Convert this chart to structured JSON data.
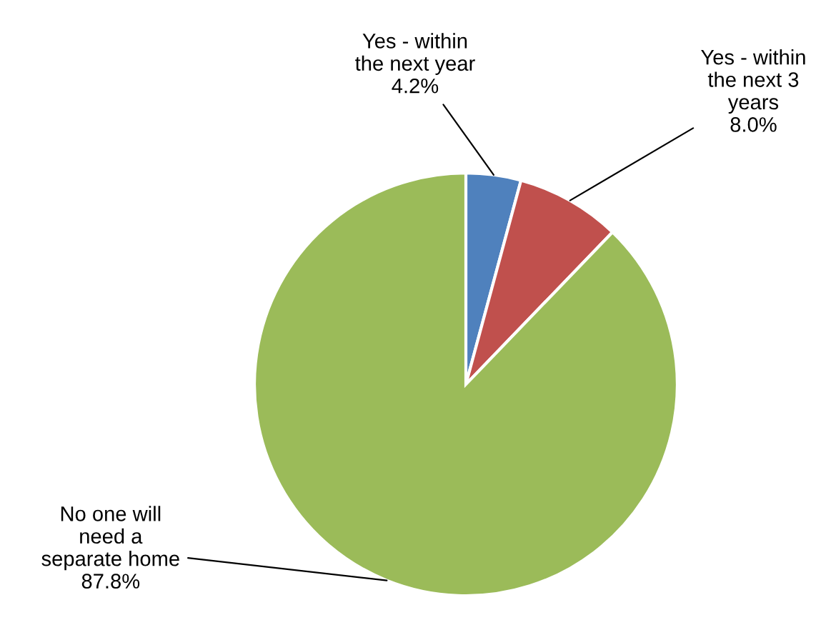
{
  "chart_data": {
    "type": "pie",
    "categories": [
      "Yes - within\nthe next year",
      "Yes - within\nthe next 3\nyears",
      "No one will\nneed a\nseparate home"
    ],
    "values": [
      4.2,
      8.0,
      87.8
    ],
    "colors": [
      "#4f81bd",
      "#c0504d",
      "#9bbb59"
    ],
    "value_labels": [
      "4.2%",
      "8.0%",
      "87.8%"
    ],
    "legend": false
  }
}
